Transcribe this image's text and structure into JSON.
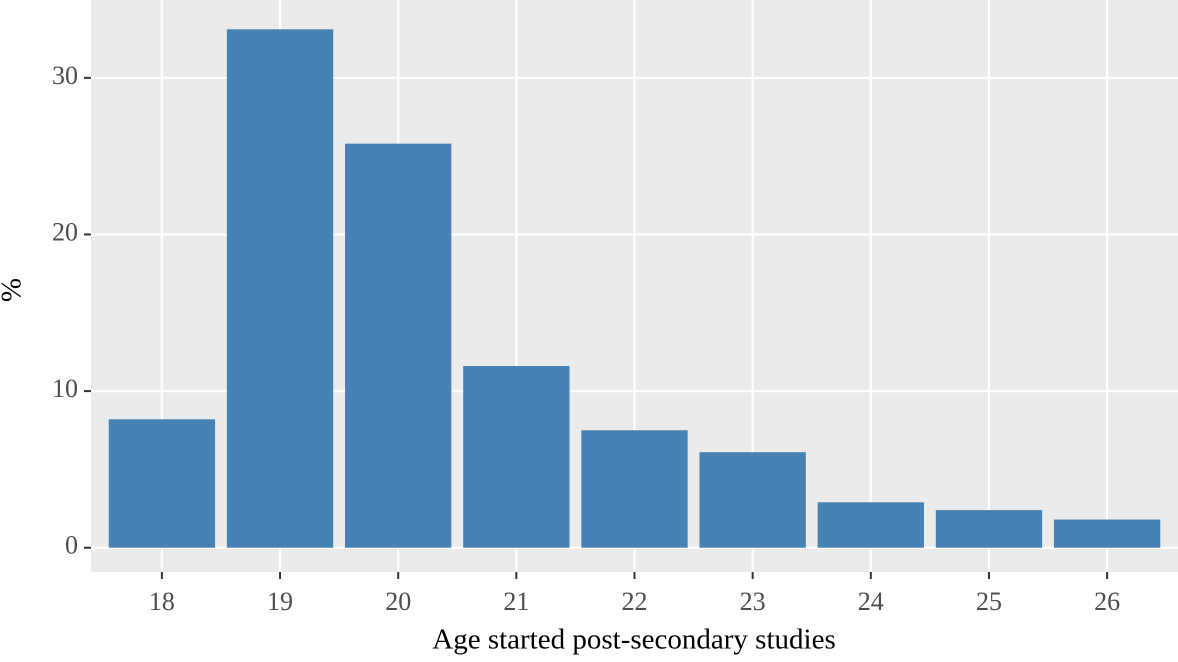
{
  "chart_data": {
    "type": "bar",
    "x_label": "Age started post-secondary studies",
    "y_label": "%",
    "categories": [
      "18",
      "19",
      "20",
      "21",
      "22",
      "23",
      "24",
      "25",
      "26"
    ],
    "values": [
      8.2,
      33.1,
      25.8,
      11.6,
      7.5,
      6.1,
      2.9,
      2.4,
      1.8
    ],
    "color": "#4682b4",
    "ylim": [
      -1.55,
      34.97
    ],
    "yticks": [
      0,
      10,
      20,
      30
    ],
    "grid": true
  }
}
